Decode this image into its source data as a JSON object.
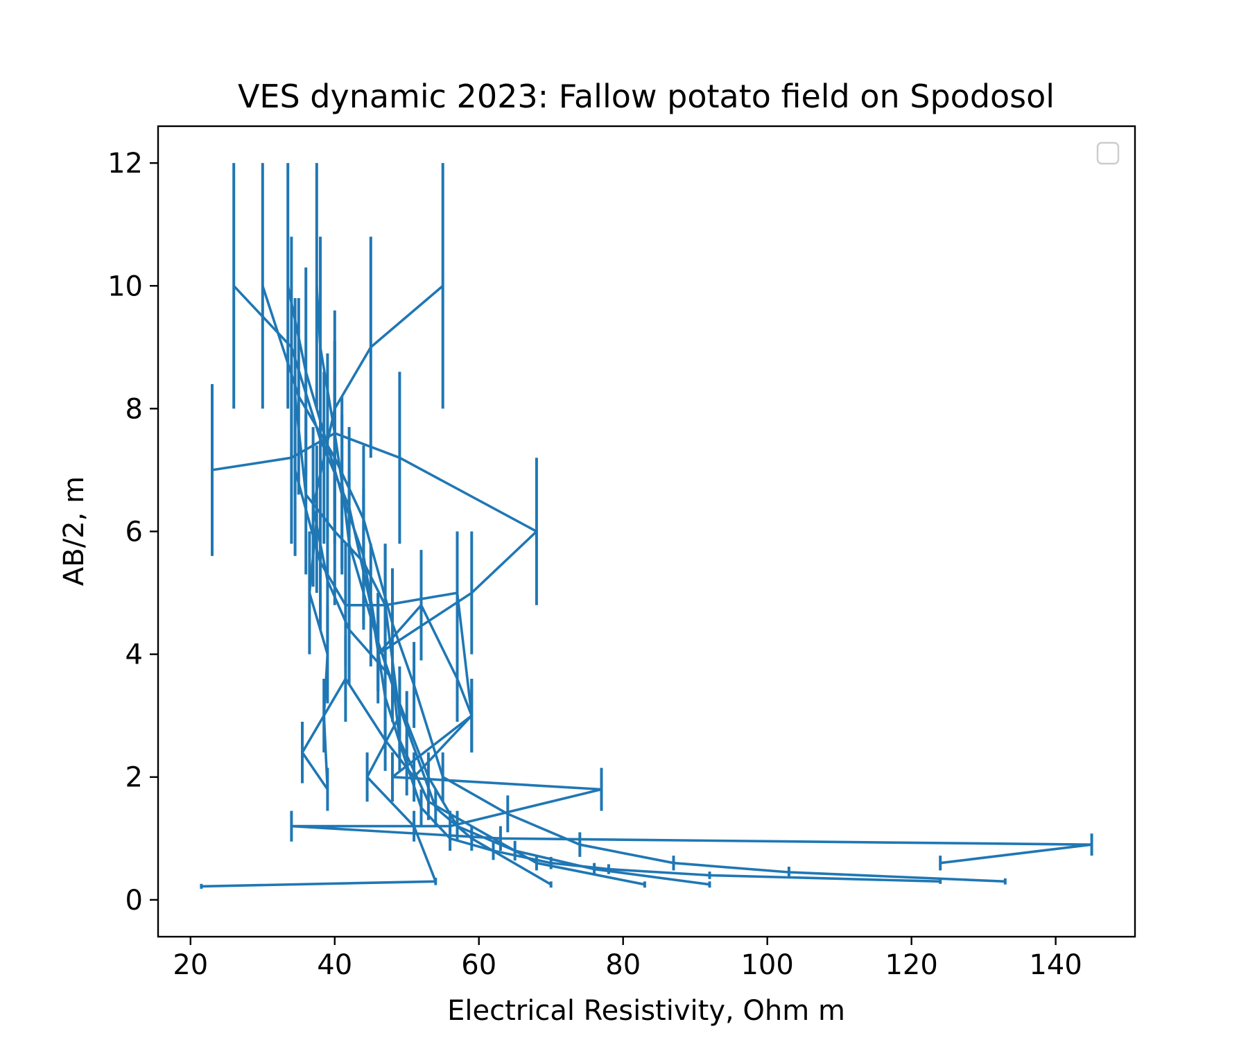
{
  "chart_data": {
    "type": "line",
    "title": "VES dynamic 2023: Fallow potato field on Spodosol",
    "xlabel": "Electrical Resistivity, Ohm m",
    "ylabel": "AB/2, m",
    "xlim": [
      15.5,
      151
    ],
    "ylim": [
      -0.6,
      12.6
    ],
    "xticks": [
      20,
      40,
      60,
      80,
      100,
      120,
      140
    ],
    "yticks": [
      0,
      2,
      4,
      6,
      8,
      10,
      12
    ],
    "grid": false,
    "legend": "top-right",
    "color": "#1f77b4",
    "series": [
      {
        "x": [
          26,
          34,
          38,
          42,
          45,
          47,
          50,
          52,
          56,
          62,
          70,
          78,
          92,
          124
        ],
        "y": [
          10,
          9,
          7.5,
          6.4,
          4.8,
          3.3,
          2.2,
          1.5,
          1.0,
          0.8,
          0.6,
          0.5,
          0.4,
          0.3
        ],
        "err": [
          2,
          1.8,
          1.5,
          1.3,
          1.0,
          0.7,
          0.5,
          0.3,
          0.2,
          0.15,
          0.1,
          0.08,
          0.06,
          0.04
        ]
      },
      {
        "x": [
          30,
          35,
          40,
          44,
          48,
          51,
          55,
          64,
          74,
          87,
          103,
          133
        ],
        "y": [
          10,
          8.2,
          7.2,
          6.2,
          4.5,
          3.5,
          2.0,
          1.4,
          0.9,
          0.6,
          0.45,
          0.3
        ],
        "err": [
          2,
          1.6,
          1.4,
          1.2,
          0.9,
          0.7,
          0.4,
          0.3,
          0.2,
          0.12,
          0.09,
          0.05
        ]
      },
      {
        "x": [
          33.5,
          36,
          39,
          41,
          44,
          46,
          49,
          53,
          57,
          65,
          76,
          92
        ],
        "y": [
          10,
          8.6,
          7.4,
          6.6,
          5.6,
          4.2,
          3.2,
          2.0,
          1.2,
          0.8,
          0.5,
          0.25
        ],
        "err": [
          2,
          1.7,
          1.5,
          1.3,
          1.1,
          0.8,
          0.6,
          0.4,
          0.25,
          0.16,
          0.1,
          0.05
        ]
      },
      {
        "x": [
          37.5,
          38,
          40,
          41,
          42,
          46,
          50,
          54,
          59,
          70
        ],
        "y": [
          10,
          9,
          7.6,
          6.8,
          5.8,
          4.2,
          2.8,
          1.5,
          1.0,
          0.25
        ],
        "err": [
          2,
          1.8,
          1.5,
          1.4,
          1.2,
          0.8,
          0.6,
          0.3,
          0.2,
          0.05
        ]
      },
      {
        "x": [
          55,
          45,
          40,
          38.5,
          37,
          39,
          42,
          48,
          49,
          53,
          68,
          83
        ],
        "y": [
          10,
          9,
          8,
          7.2,
          6.4,
          5.2,
          4.4,
          3.6,
          2.6,
          1.6,
          0.6,
          0.25
        ],
        "err": [
          2,
          1.8,
          1.6,
          1.4,
          1.3,
          1.0,
          0.9,
          0.7,
          0.5,
          0.3,
          0.12,
          0.05
        ]
      },
      {
        "x": [
          23,
          34,
          40,
          49,
          68,
          59,
          46,
          52,
          57,
          59,
          48,
          77,
          56,
          34,
          63,
          145,
          124
        ],
        "y": [
          7,
          7.2,
          7.6,
          7.2,
          6,
          5,
          4,
          4.8,
          3.6,
          3,
          2,
          1.8,
          1.2,
          1.2,
          1.0,
          0.9,
          0.6
        ],
        "err": [
          1.4,
          1.4,
          1.5,
          1.4,
          1.2,
          1.0,
          0.8,
          0.9,
          0.7,
          0.6,
          0.4,
          0.35,
          0.25,
          0.25,
          0.2,
          0.18,
          0.12
        ]
      },
      {
        "x": [
          34.5,
          36,
          40,
          44,
          47,
          49,
          44.5,
          51,
          54,
          21.5
        ],
        "y": [
          8.2,
          6.6,
          6.0,
          5.5,
          4.8,
          3.0,
          2.0,
          1.2,
          0.3,
          0.22
        ],
        "err": [
          1.6,
          1.3,
          1.2,
          1.1,
          1.0,
          0.6,
          0.4,
          0.25,
          0.06,
          0.04
        ]
      },
      {
        "x": [
          34.5,
          38,
          41.5,
          47,
          57,
          59,
          51,
          47,
          41.5,
          35.5,
          39,
          38.5,
          39,
          36.5,
          37.5
        ],
        "y": [
          7.0,
          5.5,
          4.8,
          4.8,
          5.0,
          3.0,
          2.0,
          2.6,
          3.6,
          2.4,
          1.8,
          3.0,
          4.0,
          5.0,
          6.2
        ],
        "err": [
          1.4,
          1.1,
          1.0,
          1.0,
          1.0,
          0.6,
          0.4,
          0.5,
          0.7,
          0.5,
          0.35,
          0.6,
          0.8,
          1.0,
          1.2
        ]
      }
    ]
  }
}
